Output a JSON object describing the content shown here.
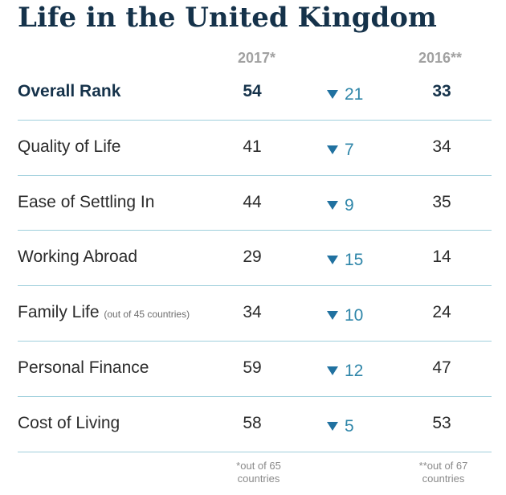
{
  "chart_data": {
    "type": "table",
    "title": "Life in the United Kingdom",
    "columns": [
      "2017*",
      "",
      "2016**"
    ],
    "rows": [
      {
        "label": "Overall Rank",
        "note": "",
        "y2017": "54",
        "change_direction": "down",
        "change": "21",
        "y2016": "33",
        "emphasis": true
      },
      {
        "label": "Quality of Life",
        "note": "",
        "y2017": "41",
        "change_direction": "down",
        "change": "7",
        "y2016": "34",
        "emphasis": false
      },
      {
        "label": "Ease of Settling In",
        "note": "",
        "y2017": "44",
        "change_direction": "down",
        "change": "9",
        "y2016": "35",
        "emphasis": false
      },
      {
        "label": "Working Abroad",
        "note": "",
        "y2017": "29",
        "change_direction": "down",
        "change": "15",
        "y2016": "14",
        "emphasis": false
      },
      {
        "label": "Family Life",
        "note": "(out of 45 countries)",
        "y2017": "34",
        "change_direction": "down",
        "change": "10",
        "y2016": "24",
        "emphasis": false
      },
      {
        "label": "Personal Finance",
        "note": "",
        "y2017": "59",
        "change_direction": "down",
        "change": "12",
        "y2016": "47",
        "emphasis": false
      },
      {
        "label": "Cost of Living",
        "note": "",
        "y2017": "58",
        "change_direction": "down",
        "change": "5",
        "y2016": "53",
        "emphasis": false
      }
    ],
    "footnotes": {
      "y2017": [
        "*out of 65",
        "countries"
      ],
      "y2016": [
        "**out of 67",
        "countries"
      ]
    }
  },
  "colors": {
    "title": "#15324a",
    "header": "#a1a1a1",
    "divider": "#9fcfdc",
    "change_text": "#2f86a9",
    "down_arrow": "#2071a0"
  }
}
